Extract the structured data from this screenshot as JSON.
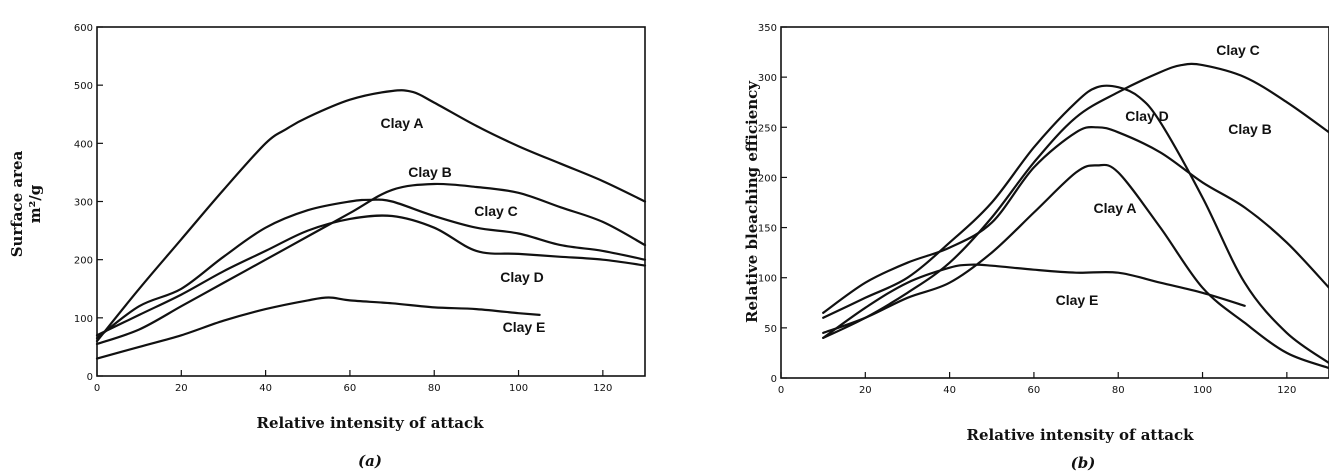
{
  "chart_data": [
    {
      "panel": "(a)",
      "type": "line",
      "title": "",
      "xlabel": "Relative intensity of attack",
      "ylabel": [
        "Surface area",
        "m²/g"
      ],
      "xlim": [
        0,
        130
      ],
      "ylim": [
        0,
        600
      ],
      "xticks": [
        0,
        20,
        40,
        60,
        80,
        100,
        120
      ],
      "yticks": [
        0,
        100,
        200,
        300,
        400,
        500,
        600
      ],
      "grid": false,
      "series": [
        {
          "name": "Clay A",
          "x": [
            0,
            10,
            20,
            30,
            40,
            45,
            50,
            60,
            70,
            75,
            80,
            90,
            100,
            110,
            120,
            130
          ],
          "y": [
            60,
            150,
            235,
            320,
            400,
            425,
            445,
            475,
            490,
            488,
            470,
            430,
            395,
            365,
            335,
            300
          ]
        },
        {
          "name": "Clay B",
          "x": [
            0,
            10,
            20,
            30,
            40,
            50,
            60,
            70,
            80,
            90,
            100,
            110,
            120,
            130
          ],
          "y": [
            55,
            80,
            120,
            160,
            200,
            240,
            280,
            320,
            330,
            325,
            315,
            290,
            265,
            225
          ]
        },
        {
          "name": "Clay C",
          "x": [
            0,
            10,
            20,
            30,
            40,
            50,
            60,
            65,
            70,
            80,
            90,
            100,
            110,
            120,
            130
          ],
          "y": [
            65,
            120,
            150,
            205,
            255,
            285,
            300,
            303,
            300,
            275,
            255,
            245,
            225,
            215,
            200
          ]
        },
        {
          "name": "Clay D",
          "x": [
            0,
            10,
            20,
            30,
            40,
            50,
            60,
            70,
            80,
            90,
            100,
            110,
            120,
            130
          ],
          "y": [
            70,
            105,
            140,
            180,
            215,
            250,
            270,
            275,
            255,
            215,
            210,
            205,
            200,
            190
          ]
        },
        {
          "name": "Clay E",
          "x": [
            0,
            10,
            20,
            30,
            40,
            50,
            55,
            60,
            70,
            80,
            90,
            100,
            105
          ],
          "y": [
            30,
            50,
            70,
            95,
            115,
            130,
            135,
            130,
            125,
            118,
            115,
            108,
            105
          ]
        }
      ],
      "annotations": [
        {
          "text": "Clay A",
          "series": "Clay A"
        },
        {
          "text": "Clay B",
          "series": "Clay B"
        },
        {
          "text": "Clay C",
          "series": "Clay C"
        },
        {
          "text": "Clay D",
          "series": "Clay D"
        },
        {
          "text": "Clay E",
          "series": "Clay E"
        }
      ]
    },
    {
      "panel": "(b)",
      "type": "line",
      "title": "",
      "xlabel": "Relative intensity of attack",
      "ylabel": [
        "Relative bleaching efficiency"
      ],
      "xlim": [
        0,
        130
      ],
      "ylim": [
        0,
        350
      ],
      "xticks": [
        0,
        20,
        40,
        60,
        80,
        100,
        120
      ],
      "yticks": [
        0,
        50,
        100,
        150,
        200,
        250,
        300,
        350
      ],
      "grid": false,
      "series": [
        {
          "name": "Clay A",
          "x": [
            10,
            20,
            30,
            40,
            50,
            60,
            70,
            75,
            80,
            90,
            100,
            110,
            120,
            130
          ],
          "y": [
            45,
            60,
            80,
            95,
            125,
            165,
            205,
            212,
            205,
            150,
            90,
            55,
            25,
            10
          ]
        },
        {
          "name": "Clay B",
          "x": [
            10,
            20,
            30,
            40,
            50,
            60,
            70,
            75,
            80,
            90,
            100,
            110,
            120,
            130
          ],
          "y": [
            65,
            95,
            115,
            130,
            155,
            210,
            245,
            250,
            245,
            225,
            195,
            170,
            135,
            90
          ]
        },
        {
          "name": "Clay C",
          "x": [
            10,
            20,
            30,
            40,
            50,
            60,
            70,
            80,
            90,
            95,
            100,
            110,
            120,
            130
          ],
          "y": [
            40,
            60,
            85,
            115,
            160,
            215,
            260,
            285,
            305,
            312,
            312,
            300,
            275,
            245
          ]
        },
        {
          "name": "Clay D",
          "x": [
            10,
            20,
            30,
            40,
            50,
            60,
            70,
            75,
            80,
            85,
            90,
            100,
            110,
            120,
            130
          ],
          "y": [
            60,
            80,
            100,
            135,
            175,
            230,
            275,
            290,
            290,
            280,
            255,
            180,
            95,
            45,
            15
          ]
        },
        {
          "name": "Clay E",
          "x": [
            10,
            20,
            30,
            40,
            45,
            50,
            60,
            70,
            80,
            90,
            100,
            110
          ],
          "y": [
            40,
            70,
            95,
            110,
            113,
            112,
            108,
            105,
            105,
            95,
            85,
            72
          ]
        }
      ],
      "annotations": [
        {
          "text": "Clay A",
          "series": "Clay A"
        },
        {
          "text": "Clay B",
          "series": "Clay B"
        },
        {
          "text": "Clay C",
          "series": "Clay C"
        },
        {
          "text": "Clay D",
          "series": "Clay D"
        },
        {
          "text": "Clay E",
          "series": "Clay E"
        }
      ]
    }
  ]
}
